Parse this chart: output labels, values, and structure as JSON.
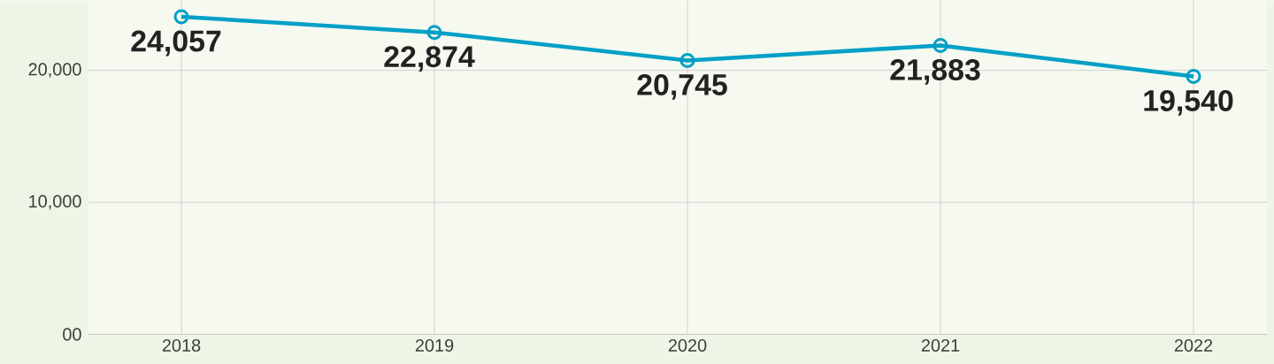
{
  "chart_data": {
    "type": "line",
    "categories": [
      "2018",
      "2019",
      "2020",
      "2021",
      "2022"
    ],
    "series": [
      {
        "color": "#00a0c6",
        "values": [
          24057,
          22874,
          20745,
          21883,
          19540
        ],
        "value_labels": [
          "24,057",
          "22,874",
          "20,745",
          "21,883",
          "19,540"
        ]
      }
    ],
    "ylim": [
      0,
      25300
    ],
    "yticks": [
      {
        "value": 0,
        "label": "00"
      },
      {
        "value": 10000,
        "label": "10,000"
      },
      {
        "value": 20000,
        "label": "20,000"
      }
    ],
    "grid": true,
    "marker": "circle",
    "line_style": "solid"
  }
}
